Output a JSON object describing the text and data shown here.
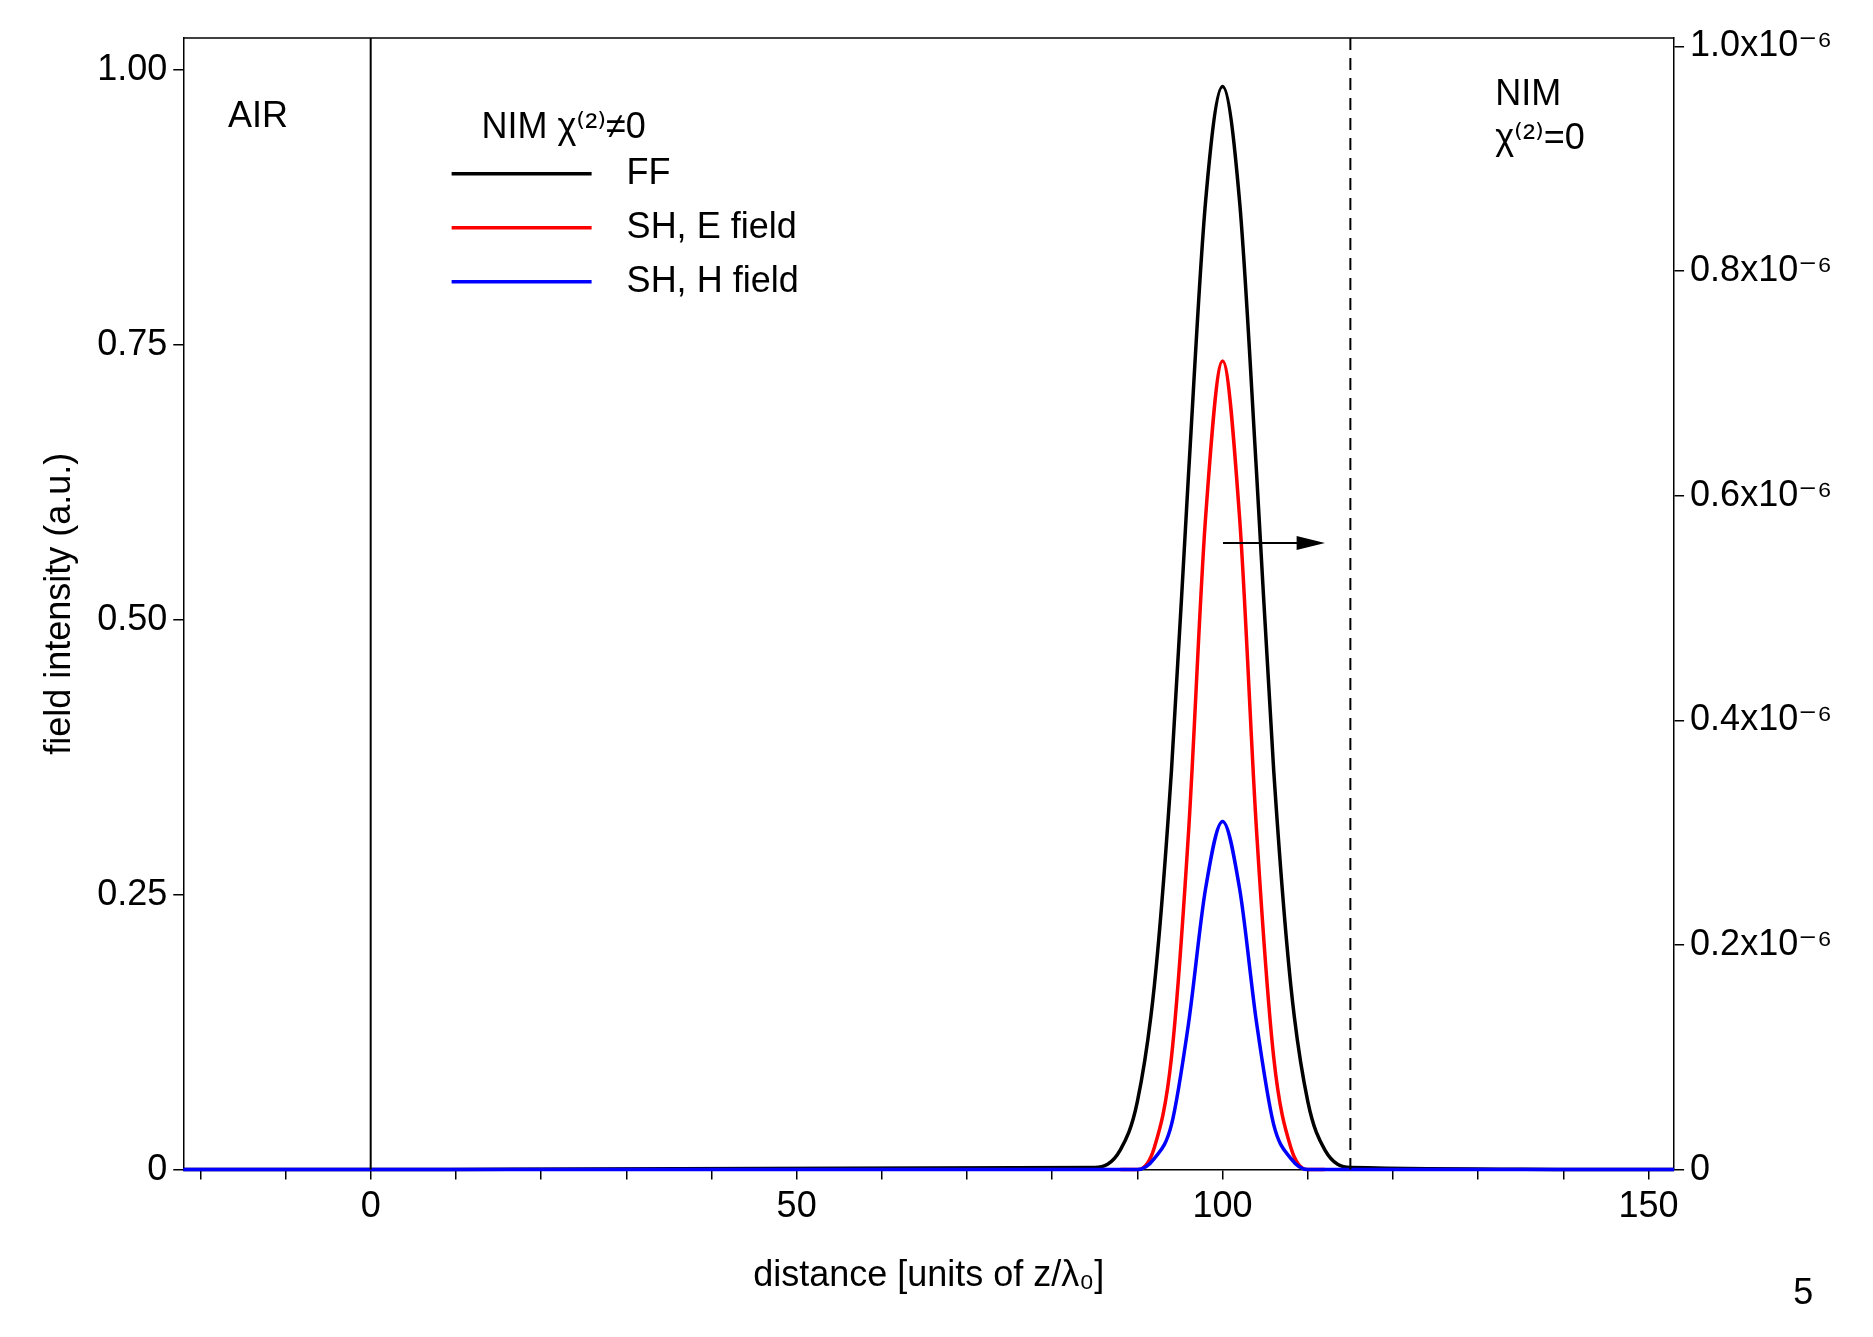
{
  "chart_data": {
    "type": "line",
    "xlabel": "distance [units of z/λ₀]",
    "ylabel": "field intensity (a.u.)",
    "x": [
      -22,
      85,
      88,
      90,
      92,
      94,
      96,
      98,
      100,
      102,
      104,
      106,
      108,
      110,
      112,
      115,
      153
    ],
    "series": [
      {
        "name": "FF",
        "color": "#000000",
        "values": [
          0,
          0.002,
          0.018,
          0.062,
          0.168,
          0.363,
          0.632,
          0.88,
          0.985,
          0.88,
          0.632,
          0.363,
          0.168,
          0.062,
          0.018,
          0.002,
          0
        ]
      },
      {
        "name": "SH, E field",
        "color": "#ff0000",
        "axis": "y2",
        "values": [
          null,
          null,
          0,
          0,
          2e-08,
          1e-07,
          3e-07,
          5.8e-07,
          7.2e-07,
          5.8e-07,
          3e-07,
          1e-07,
          2e-08,
          0,
          0,
          null,
          null
        ]
      },
      {
        "name": "SH, H field",
        "color": "#0000ff",
        "axis": "y2",
        "values": [
          0,
          0,
          0,
          0,
          1e-08,
          4e-08,
          1.3e-07,
          2.5e-07,
          3.1e-07,
          2.5e-07,
          1.3e-07,
          4e-08,
          1e-08,
          0,
          0,
          0,
          0
        ]
      }
    ],
    "xlim": [
      -22,
      153
    ],
    "xticks": [
      {
        "value": -20,
        "label": null
      },
      {
        "value": -10,
        "label": null
      },
      0,
      {
        "value": 10,
        "label": null
      },
      {
        "value": 20,
        "label": null
      },
      {
        "value": 30,
        "label": null
      },
      {
        "value": 40,
        "label": null
      },
      50,
      {
        "value": 60,
        "label": null
      },
      {
        "value": 70,
        "label": null
      },
      {
        "value": 80,
        "label": null
      },
      {
        "value": 90,
        "label": null
      },
      100,
      {
        "value": 110,
        "label": null
      },
      {
        "value": 120,
        "label": null
      },
      {
        "value": 130,
        "label": null
      },
      {
        "value": 140,
        "label": null
      },
      150
    ],
    "ylim": [
      0,
      1.029
    ],
    "yticks": [
      0,
      {
        "value": 0.25,
        "label": "0.25"
      },
      {
        "value": 0.5,
        "label": "0.50"
      },
      {
        "value": 0.75,
        "label": "0.75"
      },
      {
        "value": 1,
        "label": "1.00"
      }
    ],
    "y2lim": [
      0,
      1.0075e-06
    ],
    "y2ticks": [
      0,
      {
        "value": 2e-07,
        "label": "0.2x10⁻⁶"
      },
      {
        "value": 4e-07,
        "label": "0.4x10⁻⁶"
      },
      {
        "value": 6e-07,
        "label": "0.6x10⁻⁶"
      },
      {
        "value": 8e-07,
        "label": "0.8x10⁻⁶"
      },
      {
        "value": 1e-06,
        "label": "1.0x10⁻⁶"
      }
    ],
    "ref_lines": [
      {
        "axis": "x",
        "value": 0,
        "color": "#000000",
        "line_style": "solid"
      },
      {
        "axis": "x",
        "value": 115,
        "color": "#000000",
        "line_style": "dashed"
      }
    ],
    "annotations": [
      "AIR",
      "NIM χ⁽²⁾≠0",
      "NIM\nχ⁽²⁾=0",
      "5"
    ],
    "legend": "top left",
    "grid": false,
    "marker": "none",
    "line_style": "solid"
  }
}
